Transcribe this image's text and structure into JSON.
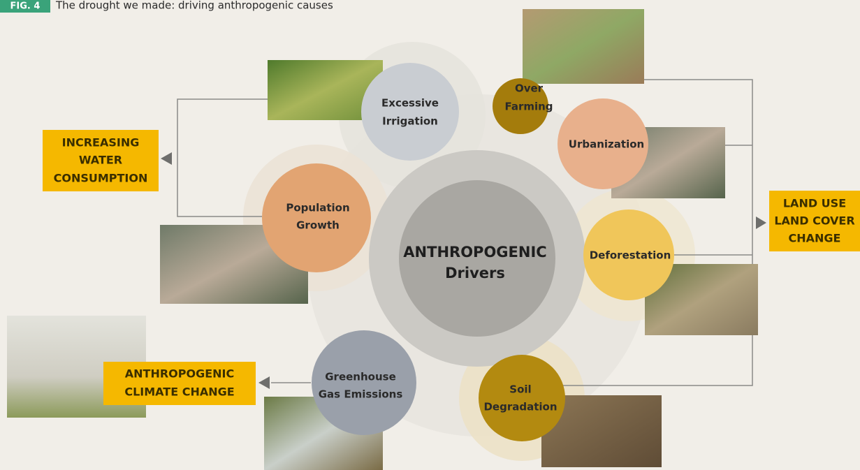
{
  "header": {
    "tag": "FIG. 4",
    "title": "The drought we made: driving anthropogenic causes"
  },
  "center": {
    "lines": [
      "ANTHROPOGENIC",
      "Drivers"
    ]
  },
  "nodes": [
    {
      "lines": [
        "Excessive",
        "Irrigation"
      ]
    },
    {
      "lines": [
        "Over",
        "Farming"
      ]
    },
    {
      "lines": [
        "Urbanization"
      ]
    },
    {
      "lines": [
        "Deforestation"
      ]
    },
    {
      "lines": [
        "Soil",
        "Degradation"
      ]
    },
    {
      "lines": [
        "Greenhouse",
        "Gas Emissions"
      ]
    },
    {
      "lines": [
        "Population",
        "Growth"
      ]
    }
  ],
  "outcomes": [
    {
      "lines": [
        "INCREASING",
        "WATER",
        "CONSUMPTION"
      ]
    },
    {
      "lines": [
        "LAND USE",
        "LAND COVER",
        "CHANGE"
      ]
    },
    {
      "lines": [
        "ANTHROPOGENIC",
        "CLIMATE CHANGE"
      ]
    }
  ]
}
